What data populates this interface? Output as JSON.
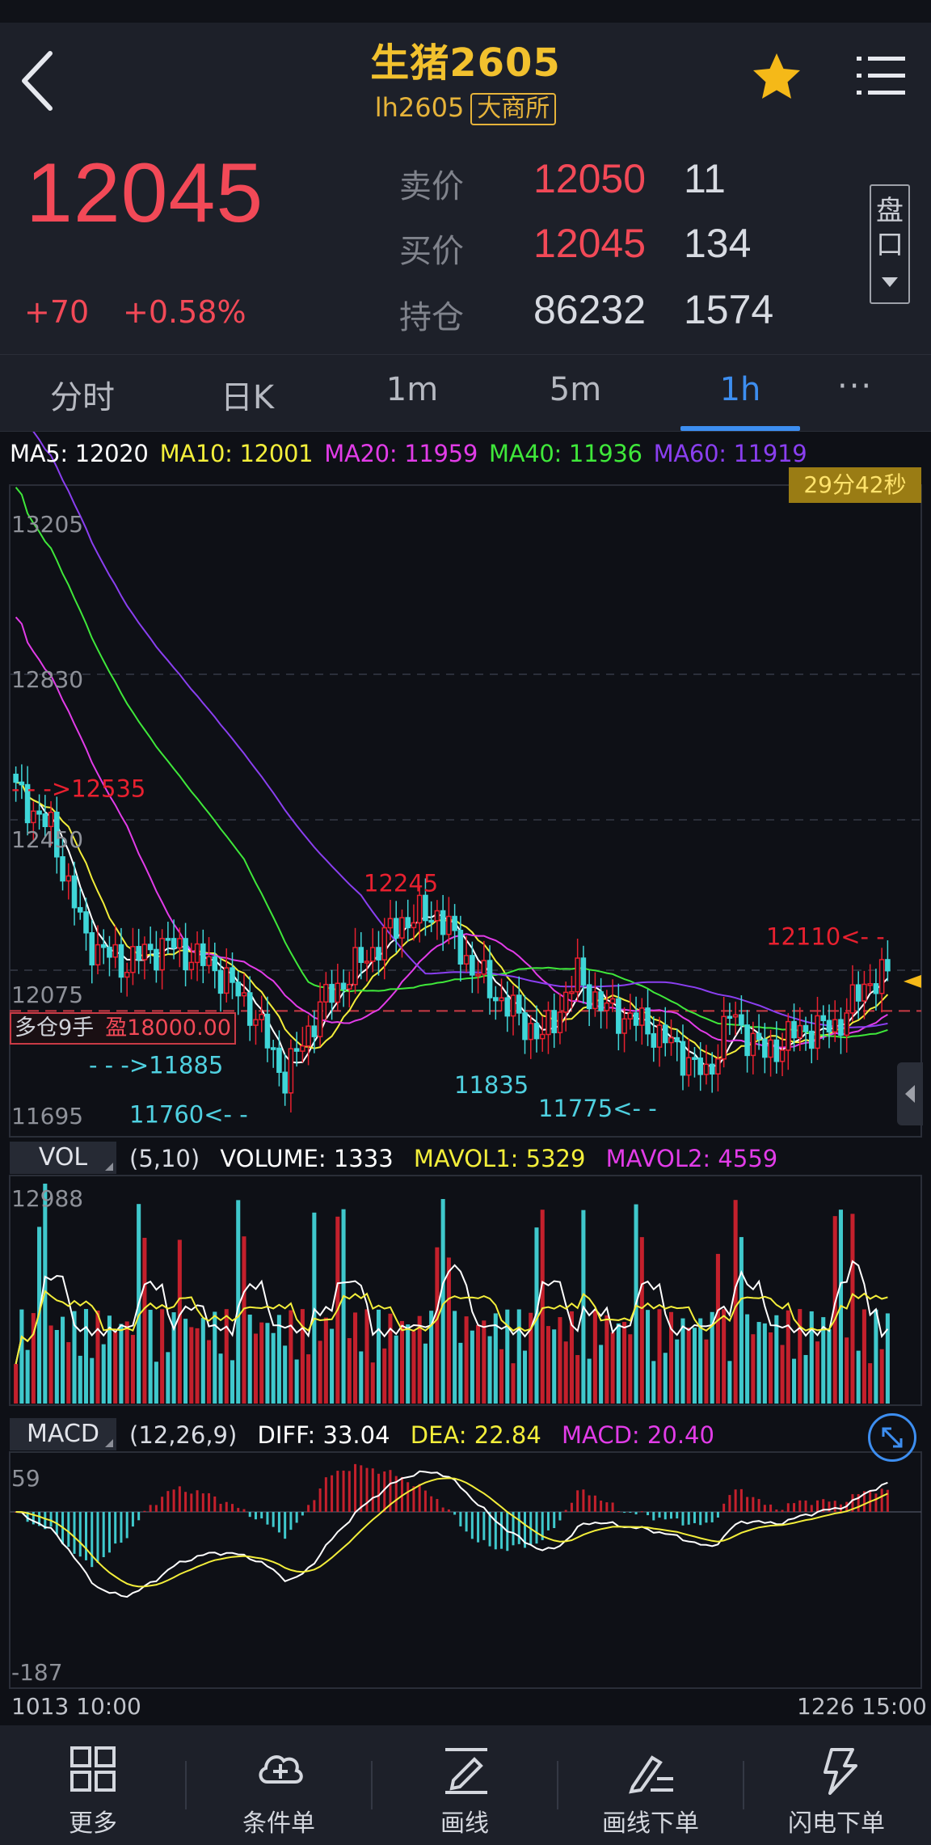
{
  "header": {
    "title": "生猪2605",
    "code": "lh2605",
    "exchange": "大商所"
  },
  "quote": {
    "last_price": "12045",
    "change": "+70",
    "change_pct": "+0.58%",
    "ask": {
      "label": "卖价",
      "price": "12050",
      "vol": "11"
    },
    "bid": {
      "label": "买价",
      "price": "12045",
      "vol": "134"
    },
    "oi": {
      "label": "持仓",
      "value": "86232",
      "change": "1574"
    },
    "pankou_label": "盘口"
  },
  "tabs": [
    {
      "label": "分时",
      "active": false
    },
    {
      "label": "日K",
      "active": false
    },
    {
      "label": "1m",
      "active": false
    },
    {
      "label": "5m",
      "active": false
    },
    {
      "label": "1h",
      "active": true
    }
  ],
  "tab_more": "···",
  "ma_legend": [
    {
      "text": "MA5: 12020",
      "color": "#ffffff"
    },
    {
      "text": "MA10: 12001",
      "color": "#f3ee3a"
    },
    {
      "text": "MA20: 11959",
      "color": "#e23ce8"
    },
    {
      "text": "MA40: 11936",
      "color": "#3fe83a"
    },
    {
      "text": "MA60: 11919",
      "color": "#8a3ff0"
    }
  ],
  "timer": "29分42秒",
  "position": {
    "left": "多仓9手",
    "right": "盈18000.00"
  },
  "colors": {
    "up": "#e8202f",
    "down": "#3fd6d8",
    "label_red": "#e8202f",
    "label_cyan": "#4fd0e0"
  },
  "chart_data": [
    {
      "type": "candlestick",
      "y_ticks": [
        "13205",
        "12830",
        "12450",
        "12075",
        "11695"
      ],
      "y_range": [
        11695,
        13205
      ],
      "annotations": [
        {
          "text": "- - ->12535",
          "value": 12535,
          "color": "red"
        },
        {
          "text": "12245",
          "value": 12245,
          "color": "red"
        },
        {
          "text": "12110<- -",
          "value": 12110,
          "color": "red"
        },
        {
          "text": "- - ->11885",
          "value": 11885,
          "color": "cyan"
        },
        {
          "text": "11760<- -",
          "value": 11760,
          "color": "cyan"
        },
        {
          "text": "11835",
          "value": 11835,
          "color": "cyan"
        },
        {
          "text": "11775<- -",
          "value": 11775,
          "color": "cyan"
        }
      ],
      "position_line": 11970
    },
    {
      "type": "bar",
      "name": "VOL",
      "params": "(5,10)",
      "legend": [
        {
          "text": "VOLUME: 1333",
          "color": "#ffffff"
        },
        {
          "text": "MAVOL1: 5329",
          "color": "#f3ee3a"
        },
        {
          "text": "MAVOL2: 4559",
          "color": "#e23ce8"
        }
      ],
      "y_max_label": "12988"
    },
    {
      "type": "bar",
      "name": "MACD",
      "params": "(12,26,9)",
      "legend": [
        {
          "text": "DIFF: 33.04",
          "color": "#ffffff"
        },
        {
          "text": "DEA: 22.84",
          "color": "#f3ee3a"
        },
        {
          "text": "MACD: 20.40",
          "color": "#e23ce8"
        }
      ],
      "y_top_label": "59",
      "y_bottom_label": "-187"
    }
  ],
  "x_axis": {
    "start": "1013 10:00",
    "end": "1226 15:00"
  },
  "bottom_nav": [
    {
      "label": "更多",
      "icon": "grid-icon"
    },
    {
      "label": "条件单",
      "icon": "cloud-plus-icon"
    },
    {
      "label": "画线",
      "icon": "pen-line-icon"
    },
    {
      "label": "画线下单",
      "icon": "pen-order-icon"
    },
    {
      "label": "闪电下单",
      "icon": "lightning-icon"
    }
  ]
}
